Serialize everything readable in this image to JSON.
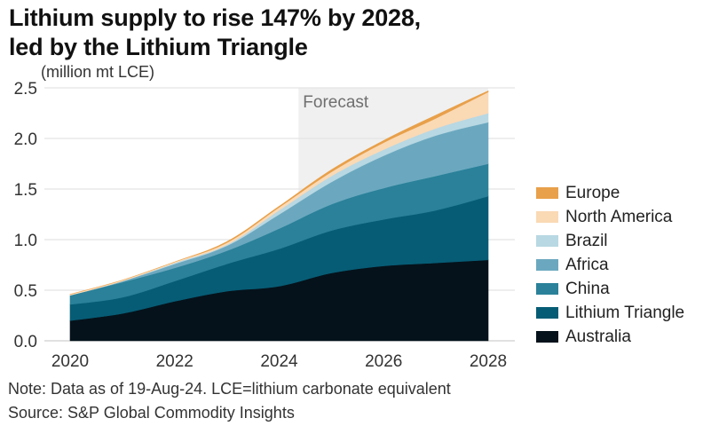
{
  "chart_data": {
    "type": "area",
    "stacked": true,
    "title": "Lithium supply to rise 147% by 2028, led by the Lithium Triangle",
    "title_lines": [
      "Lithium supply to rise 147% by 2028,",
      "led by the Lithium Triangle"
    ],
    "ylabel": "(million mt LCE)",
    "xlabel": "",
    "x": [
      2020,
      2021,
      2022,
      2023,
      2024,
      2025,
      2026,
      2027,
      2028
    ],
    "ylim": [
      0,
      2.5
    ],
    "xlim": [
      2020,
      2028
    ],
    "y_ticks": [
      "0.0",
      "0.5",
      "1.0",
      "1.5",
      "2.0",
      "2.5"
    ],
    "y_tick_values": [
      0,
      0.5,
      1.0,
      1.5,
      2.0,
      2.5
    ],
    "x_ticks": [
      "2020",
      "2022",
      "2024",
      "2026",
      "2028"
    ],
    "x_tick_values": [
      2020,
      2022,
      2024,
      2026,
      2028
    ],
    "grid": true,
    "forecast": {
      "label": "Forecast",
      "start": 2024.37,
      "end": 2028
    },
    "legend_position": "right",
    "series": [
      {
        "name": "Australia",
        "color": "#05121b",
        "values": [
          0.2,
          0.27,
          0.39,
          0.49,
          0.54,
          0.67,
          0.74,
          0.77,
          0.8
        ]
      },
      {
        "name": "Lithium Triangle",
        "color": "#065c75",
        "values": [
          0.16,
          0.16,
          0.2,
          0.27,
          0.37,
          0.42,
          0.46,
          0.52,
          0.63
        ]
      },
      {
        "name": "China",
        "color": "#2a8199",
        "values": [
          0.09,
          0.15,
          0.13,
          0.13,
          0.2,
          0.26,
          0.31,
          0.34,
          0.32
        ]
      },
      {
        "name": "Africa",
        "color": "#6ba8bf",
        "values": [
          0.0,
          0.01,
          0.04,
          0.05,
          0.14,
          0.22,
          0.32,
          0.4,
          0.41
        ]
      },
      {
        "name": "Brazil",
        "color": "#b8d8e3",
        "values": [
          0.0,
          0.0,
          0.01,
          0.01,
          0.04,
          0.06,
          0.06,
          0.07,
          0.09
        ]
      },
      {
        "name": "North America",
        "color": "#fad9b5",
        "values": [
          0.01,
          0.01,
          0.01,
          0.02,
          0.03,
          0.04,
          0.07,
          0.1,
          0.21
        ]
      },
      {
        "name": "Europe",
        "color": "#e8a04a",
        "values": [
          0.0,
          0.0,
          0.0,
          0.01,
          0.01,
          0.02,
          0.02,
          0.03,
          0.01
        ]
      }
    ],
    "legend_order": [
      "Europe",
      "North America",
      "Brazil",
      "Africa",
      "China",
      "Lithium Triangle",
      "Australia"
    ]
  },
  "footer": {
    "note": "Note: Data as of 19-Aug-24. LCE=lithium carbonate equivalent",
    "source": "Source: S&P Global Commodity Insights"
  }
}
